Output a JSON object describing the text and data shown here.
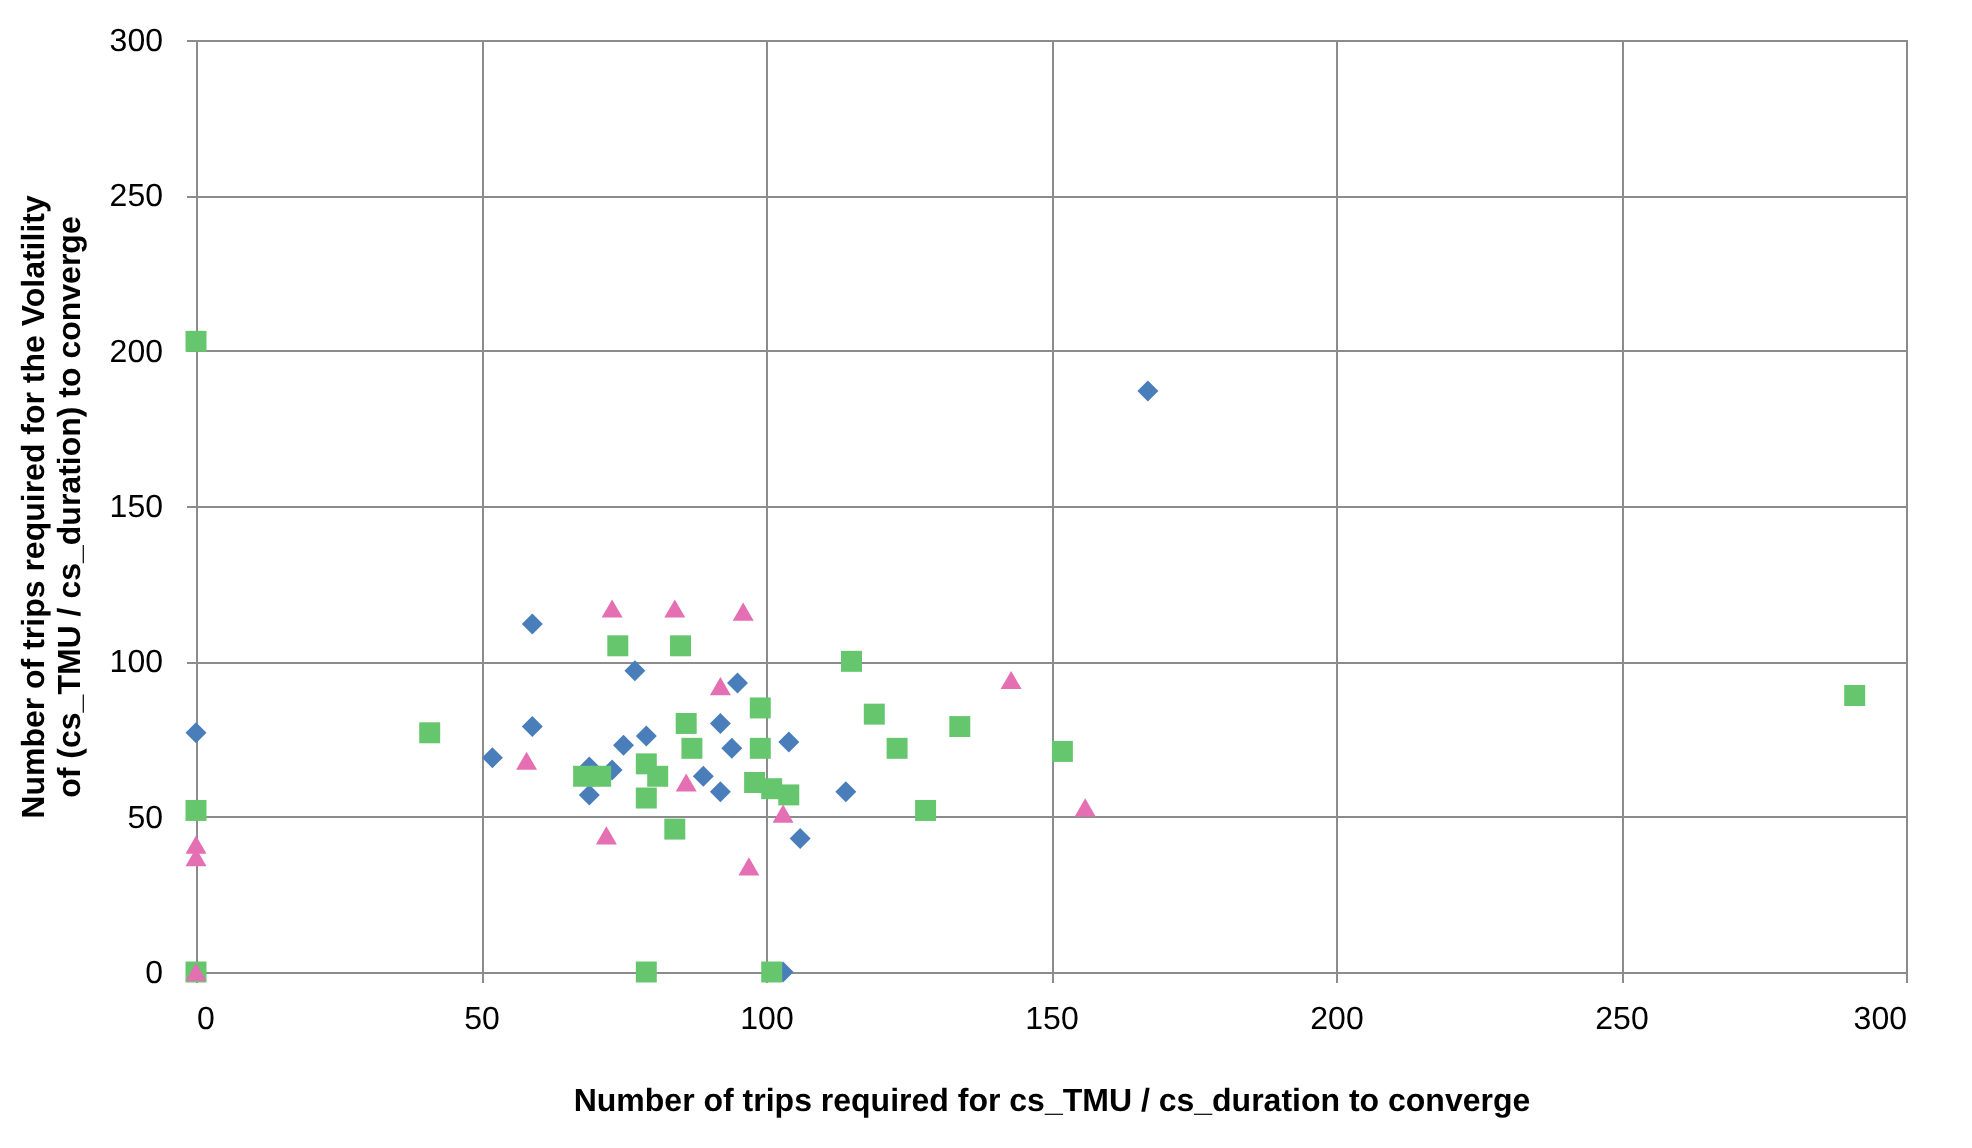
{
  "chart_data": {
    "type": "scatter",
    "xlabel": "Number of trips required for cs_TMU / cs_duration to converge",
    "ylabel": "Number of trips required for the Volatility of (cs_TMU / cs_duration) to converge",
    "xlim": [
      0,
      300
    ],
    "ylim": [
      0,
      300
    ],
    "xticks": [
      0,
      50,
      100,
      150,
      200,
      250,
      300
    ],
    "yticks": [
      0,
      50,
      100,
      150,
      200,
      250,
      300
    ],
    "grid": true,
    "series": [
      {
        "color": "#4a7ebb",
        "marker": "diamond",
        "x": [
          0,
          59,
          59,
          52,
          77,
          75,
          79,
          69,
          69,
          73,
          95,
          92,
          94,
          89,
          92,
          104,
          114,
          106,
          167,
          103
        ],
        "values": [
          77,
          112,
          79,
          69,
          97,
          73,
          76,
          66,
          57,
          65,
          93,
          80,
          72,
          63,
          58,
          74,
          58,
          43,
          187,
          0
        ]
      },
      {
        "color": "#66c66e",
        "marker": "square",
        "x": [
          0,
          0,
          0,
          41,
          74,
          85,
          115,
          119,
          123,
          134,
          128,
          152,
          291,
          99,
          99,
          86,
          87,
          79,
          68,
          71,
          79,
          81,
          84,
          98,
          101,
          104,
          79,
          101
        ],
        "values": [
          203,
          52,
          0,
          77,
          105,
          105,
          100,
          83,
          72,
          79,
          52,
          71,
          89,
          85,
          72,
          80,
          72,
          67,
          63,
          63,
          56,
          63,
          46,
          61,
          59,
          57,
          0,
          0
        ]
      },
      {
        "color": "#e46fb3",
        "marker": "triangle",
        "x": [
          73,
          84,
          96,
          92,
          58,
          72,
          86,
          103,
          97,
          143,
          156,
          0,
          0,
          0
        ],
        "values": [
          117,
          117,
          116,
          92,
          68,
          44,
          61,
          51,
          34,
          94,
          53,
          41,
          37,
          0
        ]
      }
    ]
  }
}
